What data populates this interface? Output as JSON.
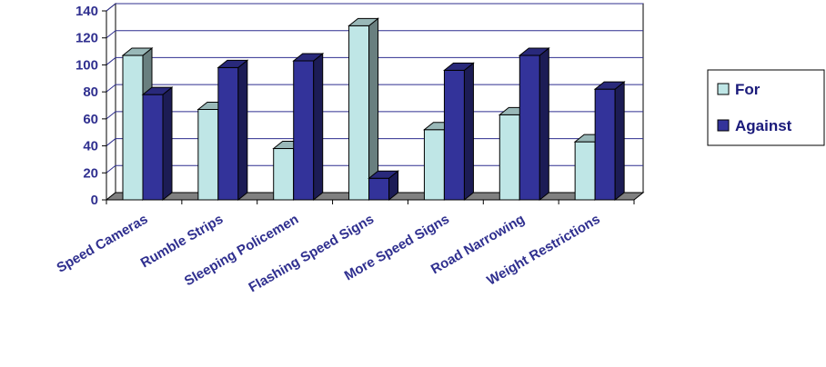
{
  "chart_data": {
    "type": "bar",
    "categories": [
      "Speed Cameras",
      "Rumble Strips",
      "Sleeping Policemen",
      "Flashing Speed Signs",
      "More Speed Signs",
      "Road Narrowing",
      "Weight Restrictions"
    ],
    "series": [
      {
        "name": "For",
        "values": [
          107,
          67,
          38,
          129,
          52,
          63,
          43
        ],
        "color": "#bfe6e6"
      },
      {
        "name": "Against",
        "values": [
          78,
          98,
          103,
          16,
          96,
          107,
          82
        ],
        "color": "#33339a"
      }
    ],
    "ylim": [
      0,
      140
    ],
    "yticks": [
      "0",
      "20",
      "40",
      "60",
      "80",
      "100",
      "120",
      "140"
    ],
    "grid": true,
    "legend_position": "right"
  }
}
